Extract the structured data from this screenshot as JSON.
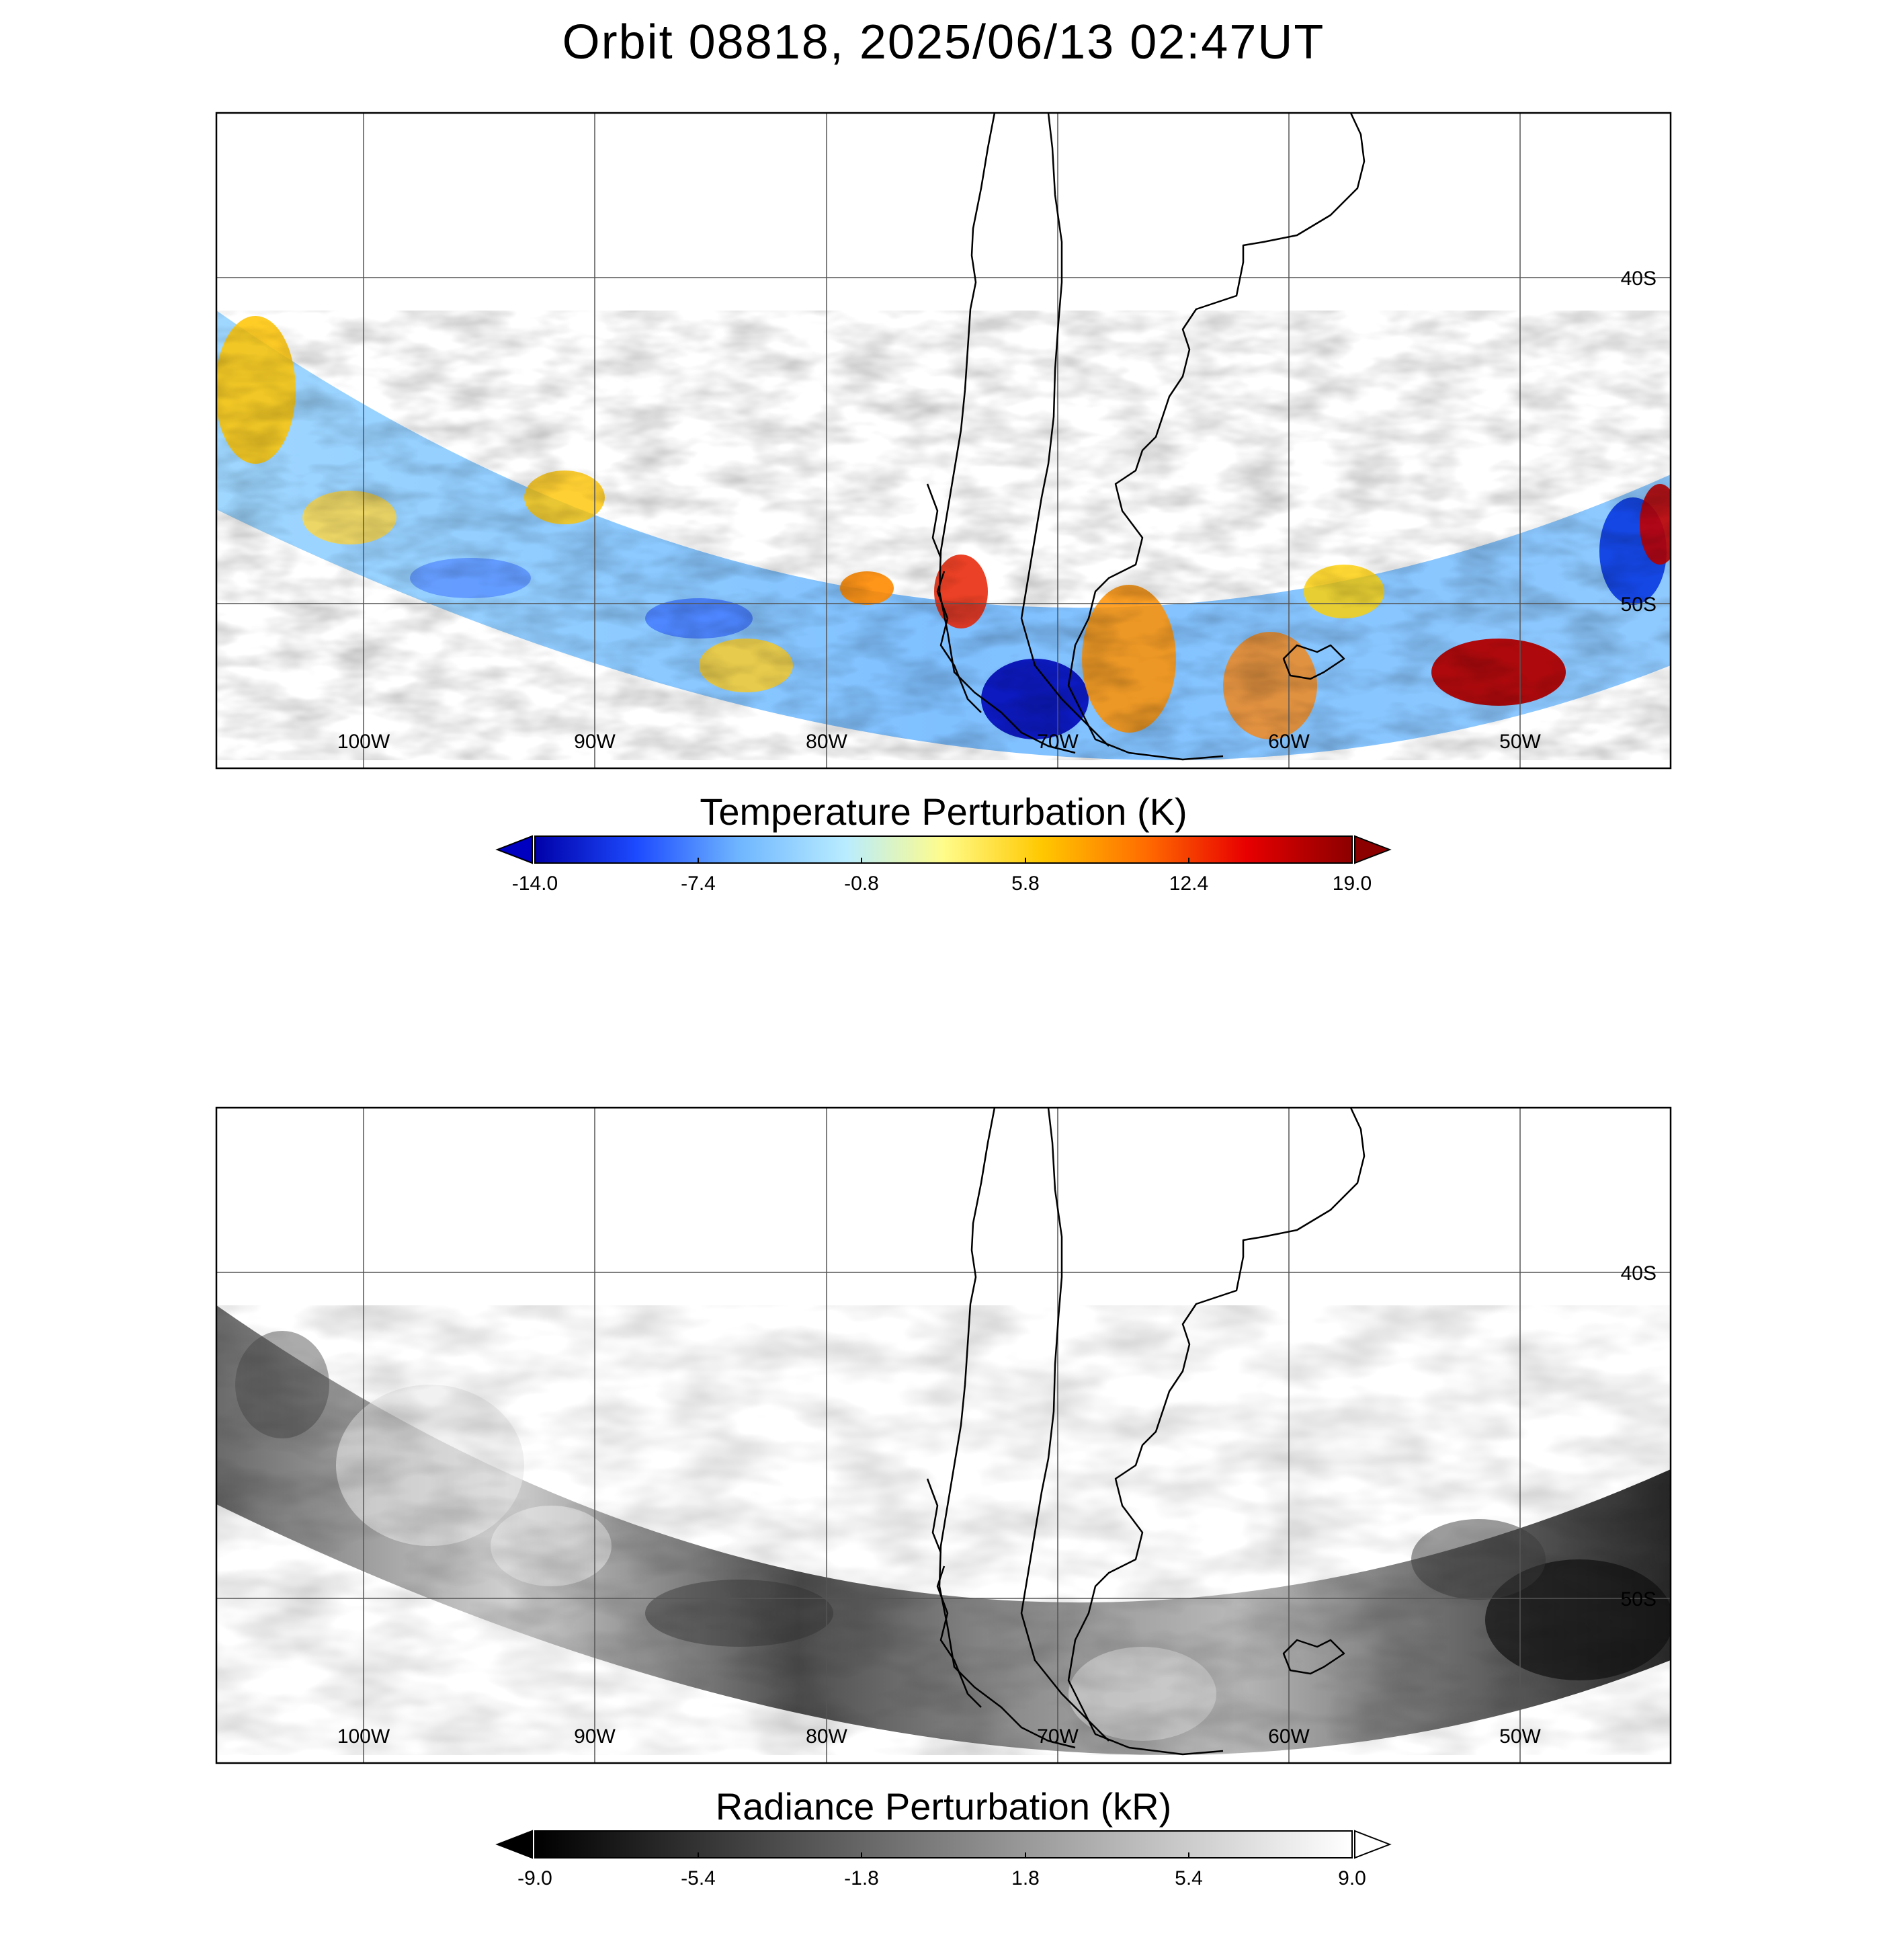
{
  "title": "Orbit 08818, 2025/06/13 02:47UT",
  "panels": [
    {
      "id": "temperature",
      "colorbar_title": "Temperature Perturbation (K)",
      "colorbar_ticks": [
        "-14.0",
        "-7.4",
        "-0.8",
        "5.8",
        "12.4",
        "19.0"
      ],
      "colormap": [
        "#0000a8",
        "#1d4bff",
        "#6fb6ff",
        "#b8ecff",
        "#fffc8a",
        "#ffc800",
        "#ff6a00",
        "#e80000",
        "#8c0000"
      ],
      "under_color": "#0000c0",
      "over_color": "#8c0000"
    },
    {
      "id": "radiance",
      "colorbar_title": "Radiance Perturbation (kR)",
      "colorbar_ticks": [
        "-9.0",
        "-5.4",
        "-1.8",
        "1.8",
        "5.4",
        "9.0"
      ],
      "colormap": [
        "#000000",
        "#ffffff"
      ],
      "under_color": "#000000",
      "over_color": "#ffffff"
    }
  ],
  "map": {
    "lon_labels": [
      "100W",
      "90W",
      "80W",
      "70W",
      "60W",
      "50W"
    ],
    "lat_labels": [
      "40S",
      "50S"
    ]
  }
}
